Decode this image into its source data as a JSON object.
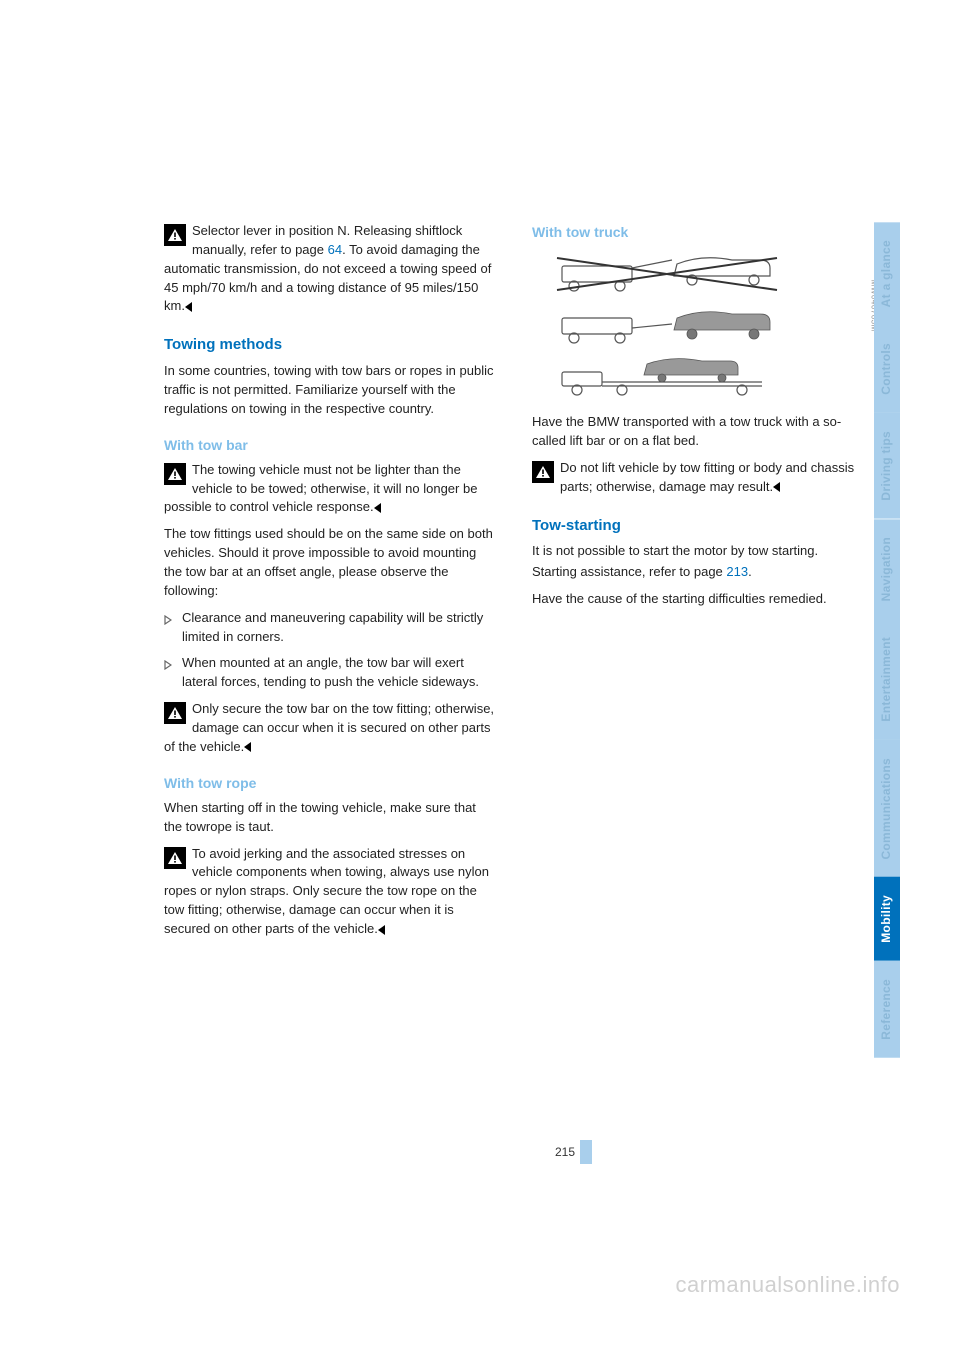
{
  "left_col": {
    "warn1_line1": "Selector lever in position N. Releasing",
    "warn1_line2_pre": "shiftlock manually, refer to page ",
    "warn1_link": "64",
    "warn1_cont": ". To avoid damaging the automatic transmission, do not exceed a towing speed of 45 mph/70 km/h and a towing distance of 95 miles/150 km.",
    "h_towing_methods": "Towing methods",
    "p_methods": "In some countries, towing with tow bars or ropes in public traffic is not permitted. Familiarize yourself with the regulations on towing in the respective country.",
    "h_tow_bar": "With tow bar",
    "warn2": "The towing vehicle must not be lighter than the vehicle to be towed; otherwise, it will no longer be possible to control vehicle response.",
    "p_bar1": "The tow fittings used should be on the same side on both vehicles. Should it prove impossible to avoid mounting the tow bar at an offset angle, please observe the following:",
    "li1": "Clearance and maneuvering capability will be strictly limited in corners.",
    "li2": "When mounted at an angle, the tow bar will exert lateral forces, tending to push the vehicle sideways.",
    "warn3": "Only secure the tow bar on the tow fitting; otherwise, damage can occur when it is secured on other parts of the vehicle.",
    "h_tow_rope": "With tow rope",
    "p_rope1": "When starting off in the towing vehicle, make sure that the towrope is taut.",
    "warn4": "To avoid jerking and the associated stresses on vehicle components when towing, always use nylon ropes or nylon straps. Only secure the tow rope on the tow fitting; otherwise, damage can occur when it is secured on other parts of the vehicle."
  },
  "right_col": {
    "h_tow_truck": "With tow truck",
    "fig_code": "MW040763M",
    "p_truck": "Have the BMW transported with a tow truck with a so-called lift bar or on a flat bed.",
    "warn5": "Do not lift vehicle by tow fitting or body and chassis parts; otherwise, damage may result.",
    "h_tow_start": "Tow-starting",
    "p_start1": "It is not possible to start the motor by tow starting.",
    "p_start2_pre": "Starting assistance, refer to page ",
    "p_start2_link": "213",
    "p_start2_post": ".",
    "p_start3": "Have the cause of the starting difficulties remedied."
  },
  "page_number": "215",
  "tabs": [
    {
      "label": "At a glance",
      "bg": "#a9cfec",
      "fg": "#8bb8d8"
    },
    {
      "label": "Controls",
      "bg": "#a9cfec",
      "fg": "#8bb8d8"
    },
    {
      "label": "Driving tips",
      "bg": "#a9cfec",
      "fg": "#8bb8d8"
    },
    {
      "label": "Navigation",
      "bg": "#a9cfec",
      "fg": "#8bb8d8"
    },
    {
      "label": "Entertainment",
      "bg": "#a9cfec",
      "fg": "#8bb8d8"
    },
    {
      "label": "Communications",
      "bg": "#a9cfec",
      "fg": "#8bb8d8"
    },
    {
      "label": "Mobility",
      "bg": "#0071bc",
      "fg": "#ffffff"
    },
    {
      "label": "Reference",
      "bg": "#a9cfec",
      "fg": "#8bb8d8"
    }
  ],
  "watermark": "carmanualsonline.info"
}
